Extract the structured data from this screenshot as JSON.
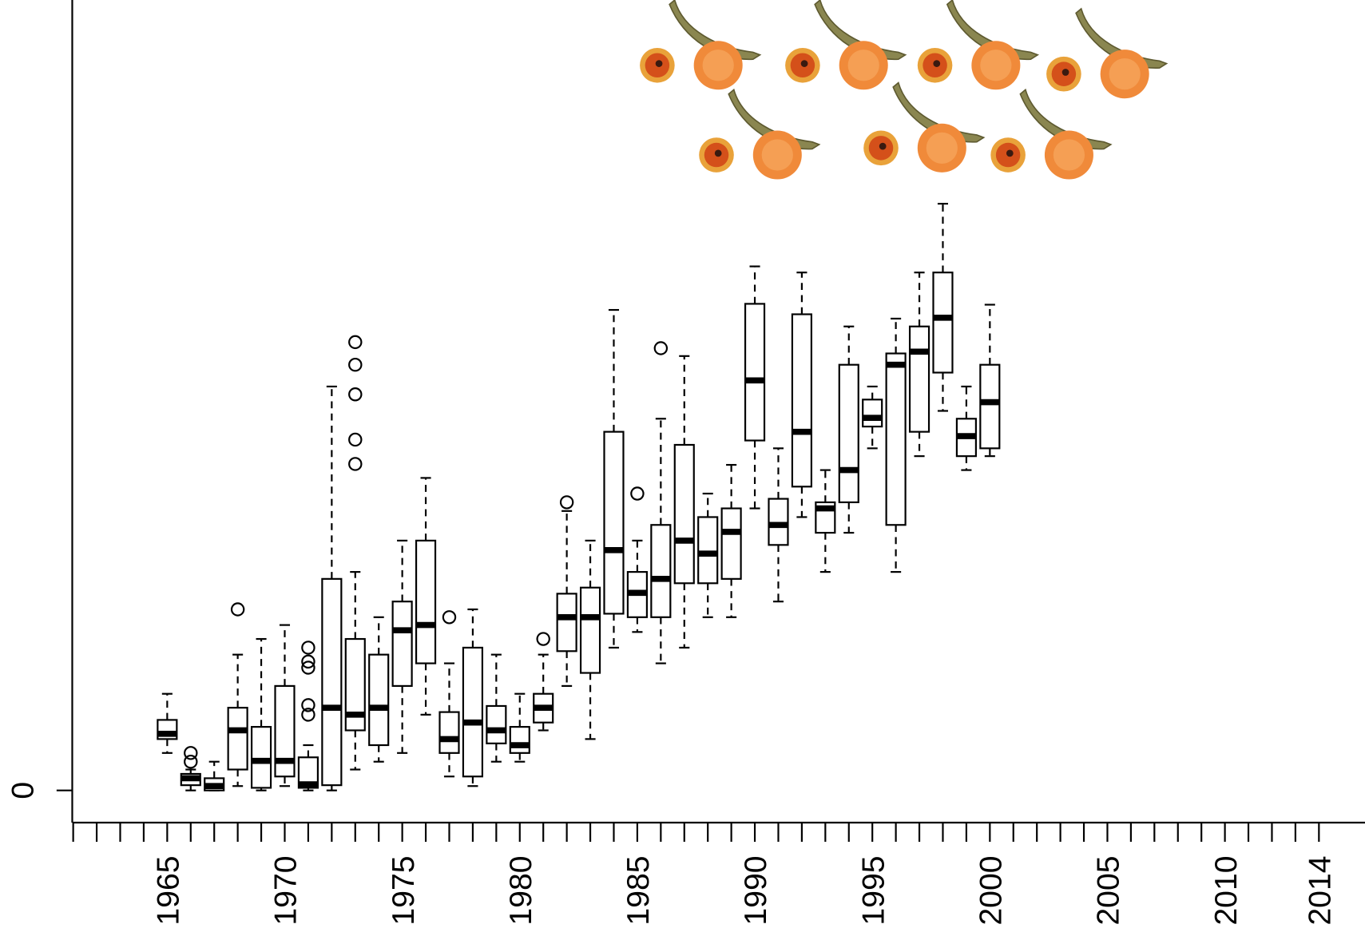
{
  "chart_data": {
    "type": "boxplot",
    "x": [
      1965,
      1966,
      1967,
      1968,
      1969,
      1970,
      1971,
      1972,
      1973,
      1974,
      1975,
      1976,
      1977,
      1978,
      1979,
      1980,
      1981,
      1982,
      1983,
      1984,
      1985,
      1986,
      1987,
      1988,
      1989,
      1990,
      1991,
      1992,
      1993,
      1994,
      1995,
      1996,
      1997,
      1998,
      1999,
      2000
    ],
    "whislo": [
      0.43,
      0,
      0,
      0.05,
      0,
      0.05,
      0,
      0,
      0.24,
      0.33,
      0.43,
      0.87,
      0.16,
      0.05,
      0.33,
      0.33,
      0.69,
      1.2,
      0.59,
      1.64,
      1.82,
      1.46,
      1.64,
      1.99,
      1.99,
      3.24,
      2.17,
      3.14,
      2.51,
      2.96,
      3.93,
      2.51,
      3.84,
      4.36,
      3.68,
      3.84
    ],
    "q1": [
      0.59,
      0.06,
      0,
      0.24,
      0.03,
      0.16,
      0.03,
      0.06,
      0.69,
      0.52,
      1.2,
      1.46,
      0.43,
      0.16,
      0.54,
      0.43,
      0.78,
      1.6,
      1.35,
      2.03,
      1.99,
      1.99,
      2.38,
      2.38,
      2.43,
      4.02,
      2.82,
      3.49,
      2.96,
      3.31,
      4.18,
      3.05,
      4.12,
      4.8,
      3.84,
      3.93
    ],
    "median": [
      0.65,
      0.14,
      0.05,
      0.69,
      0.34,
      0.34,
      0.07,
      0.95,
      0.87,
      0.95,
      1.84,
      1.9,
      0.59,
      0.78,
      0.69,
      0.52,
      0.95,
      1.99,
      1.99,
      2.76,
      2.27,
      2.43,
      2.87,
      2.72,
      2.97,
      4.71,
      3.05,
      4.12,
      3.24,
      3.68,
      4.28,
      4.89,
      5.04,
      5.43,
      4.07,
      4.46
    ],
    "q3": [
      0.81,
      0.19,
      0.14,
      0.95,
      0.73,
      1.2,
      0.38,
      2.43,
      1.74,
      1.56,
      2.17,
      2.87,
      0.9,
      1.64,
      0.97,
      0.73,
      1.11,
      2.26,
      2.33,
      4.12,
      2.51,
      3.05,
      3.97,
      3.14,
      3.24,
      5.59,
      3.35,
      5.47,
      3.31,
      4.89,
      4.49,
      5.02,
      5.33,
      5.95,
      4.27,
      4.89
    ],
    "whishi": [
      1.11,
      0.24,
      0.33,
      1.56,
      1.74,
      1.9,
      0.52,
      4.64,
      2.51,
      1.99,
      2.87,
      3.59,
      1.46,
      2.08,
      1.56,
      1.11,
      1.56,
      3.21,
      2.87,
      5.52,
      2.87,
      4.27,
      4.99,
      3.41,
      3.74,
      6.02,
      3.93,
      5.95,
      3.68,
      5.33,
      4.64,
      5.42,
      5.95,
      6.74,
      4.64,
      5.58
    ],
    "fliers": [
      [],
      [
        0.33,
        0.43
      ],
      [],
      [
        2.08
      ],
      [],
      [],
      [
        1.64,
        1.48,
        1.41,
        0.98,
        0.87
      ],
      [],
      [
        5.15,
        4.89,
        4.55,
        4.03,
        3.75
      ],
      [],
      [],
      [],
      [
        1.99
      ],
      [],
      [],
      [],
      [
        1.74
      ],
      [
        3.31
      ],
      [],
      [],
      [
        3.41
      ],
      [
        5.08
      ],
      [],
      [],
      [],
      [],
      [],
      [],
      [],
      [],
      [],
      [],
      [],
      [],
      [],
      []
    ],
    "xlim": [
      1960.96,
      2015.96
    ],
    "xticks": [
      1965,
      1970,
      1975,
      1980,
      1985,
      1990,
      1995,
      2000,
      2005,
      2010,
      2014
    ],
    "xminorticks": [
      1961,
      1962,
      1963,
      1964,
      1965,
      1966,
      1967,
      1968,
      1969,
      1970,
      1971,
      1972,
      1973,
      1974,
      1975,
      1976,
      1977,
      1978,
      1979,
      1980,
      1981,
      1982,
      1983,
      1984,
      1985,
      1986,
      1987,
      1988,
      1989,
      1990,
      1991,
      1992,
      1993,
      1994,
      1995,
      1996,
      1997,
      1998,
      1999,
      2000,
      2001,
      2002,
      2003,
      2004,
      2005,
      2006,
      2007,
      2008,
      2009,
      2010,
      2011,
      2012,
      2013,
      2014
    ],
    "ylim": [
      -0.37,
      9.08
    ],
    "yticks": [
      0
    ]
  }
}
